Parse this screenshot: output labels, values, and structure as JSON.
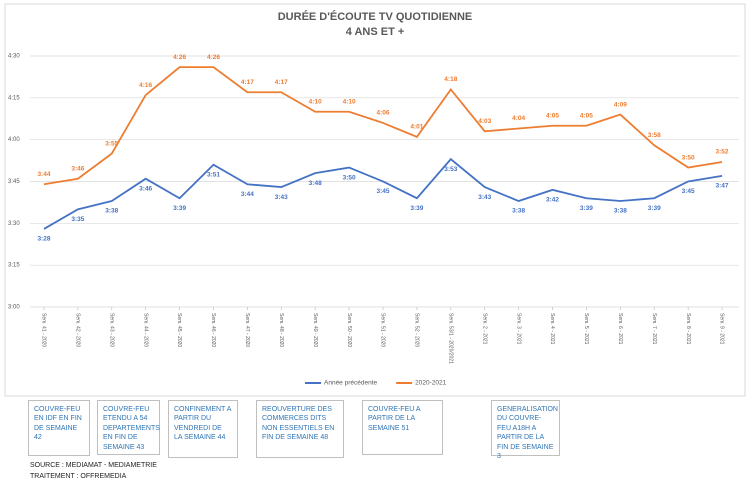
{
  "chart_data": {
    "type": "line",
    "title": "DURÉE D'ÉCOUTE TV QUOTIDIENNE",
    "subtitle": "4 ANS ET +",
    "categories": [
      "Sem. 41 - 2020",
      "Sem. 42 - 2020",
      "Sem. 43 - 2020",
      "Sem. 44 - 2020",
      "Sem. 45 - 2020",
      "Sem. 46 - 2020",
      "Sem. 47 - 2020",
      "Sem. 48 - 2020",
      "Sem. 49 - 2020",
      "Sem. 50 - 2020",
      "Sem. 51 - 2020",
      "Sem. 52 - 2020",
      "Sem. 53/1 - 2020/2021",
      "Sem. 2 - 2021",
      "Sem. 3 - 2021",
      "Sem. 4 - 2021",
      "Sem. 5 - 2021",
      "Sem. 6 - 2021",
      "Sem. 7 - 2021",
      "Sem. 8 - 2021",
      "Sem. 9 - 2021"
    ],
    "series": [
      {
        "name": "Année précédente",
        "color": "#4472c4",
        "values": [
          208,
          215,
          218,
          226,
          219,
          231,
          224,
          223,
          228,
          230,
          225,
          219,
          233,
          223,
          218,
          222,
          219,
          218,
          219,
          225,
          227
        ],
        "value_labels": [
          "3:28",
          "3:35",
          "3:38",
          "3:46",
          "3:39",
          "3:51",
          "3:44",
          "3:43",
          "3:48",
          "3:50",
          "3:45",
          "3:39",
          "3:53",
          "3:43",
          "3:38",
          "3:42",
          "3:39",
          "3:38",
          "3:39",
          "3:45",
          "3:47"
        ]
      },
      {
        "name": "2020-2021",
        "color": "#ed7d31",
        "values": [
          224,
          226,
          235,
          256,
          266,
          266,
          257,
          257,
          250,
          250,
          246,
          241,
          258,
          243,
          244,
          245,
          245,
          249,
          238,
          230,
          232
        ],
        "value_labels": [
          "3:44",
          "3:46",
          "3:55",
          "4:16",
          "4:26",
          "4:26",
          "4:17",
          "4:17",
          "4:10",
          "4:10",
          "4:06",
          "4:01",
          "4:18",
          "4:03",
          "4:04",
          "4:05",
          "4:05",
          "4:09",
          "3:58",
          "3:50",
          "3:52"
        ]
      }
    ],
    "ylim": [
      180,
      270
    ],
    "yticks": [
      {
        "value": 180,
        "label": "3:00"
      },
      {
        "value": 195,
        "label": "3:15"
      },
      {
        "value": 210,
        "label": "3:30"
      },
      {
        "value": 225,
        "label": "3:45"
      },
      {
        "value": 240,
        "label": "4:00"
      },
      {
        "value": 255,
        "label": "4:15"
      },
      {
        "value": 270,
        "label": "4:30"
      }
    ],
    "grid": true,
    "legend": "bottom",
    "annotations": [
      "COUVRE-FEU EN IDF EN FIN DE SEMAINE 42",
      "COUVRE-FEU ETENDU A 54 DEPARTEMENTS EN FIN DE SEMAINE 43",
      "CONFINEMENT A PARTIR DU VENDREDI DE LA SEMAINE 44",
      "REOUVERTURE DES COMMERCES DITS NON ESSENTIELS EN FIN DE SEMAINE 48",
      "COUVRE-FEU A PARTIR DE LA SEMAINE 51",
      "GENERALISATION DU COUVRE-FEU A18H A PARTIR DE LA FIN DE SEMAINE 3"
    ],
    "source": [
      "SOURCE  : MEDIAMAT - MEDIAMETRIE",
      "TRAITEMENT : OFFREMEDIA"
    ]
  }
}
